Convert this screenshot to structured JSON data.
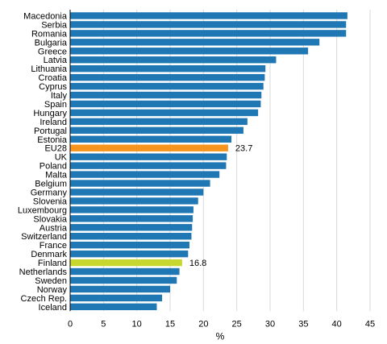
{
  "chart_data": {
    "type": "bar",
    "orientation": "horizontal",
    "categories": [
      "Macedonia",
      "Serbia",
      "Romania",
      "Bulgaria",
      "Greece",
      "Latvia",
      "Lithuania",
      "Croatia",
      "Cyprus",
      "Italy",
      "Spain",
      "Hungary",
      "Ireland",
      "Portugal",
      "Estonia",
      "EU28",
      "UK",
      "Poland",
      "Malta",
      "Belgium",
      "Germany",
      "Slovenia",
      "Luxembourg",
      "Slovakia",
      "Austria",
      "Switzerland",
      "France",
      "Denmark",
      "Finland",
      "Netherlands",
      "Sweden",
      "Norway",
      "Czech Rep.",
      "Iceland"
    ],
    "values": [
      41.6,
      41.4,
      41.4,
      37.4,
      35.7,
      30.9,
      29.3,
      29.2,
      29.0,
      28.7,
      28.6,
      28.2,
      26.6,
      26.0,
      24.2,
      23.7,
      23.5,
      23.4,
      22.4,
      21.0,
      20.0,
      19.2,
      18.5,
      18.4,
      18.3,
      18.2,
      17.9,
      17.7,
      16.8,
      16.4,
      16.0,
      15.0,
      13.8,
      13.0
    ],
    "highlights": {
      "EU28": "#f7941d",
      "Finland": "#c8d630"
    },
    "data_labels": {
      "EU28": "23.7",
      "Finland": "16.8"
    },
    "bar_color": "#1f77b4",
    "xlabel": "%",
    "xlim": [
      0,
      45
    ],
    "xticks": [
      0,
      5,
      10,
      15,
      20,
      25,
      30,
      35,
      40,
      45
    ],
    "grid": true
  }
}
